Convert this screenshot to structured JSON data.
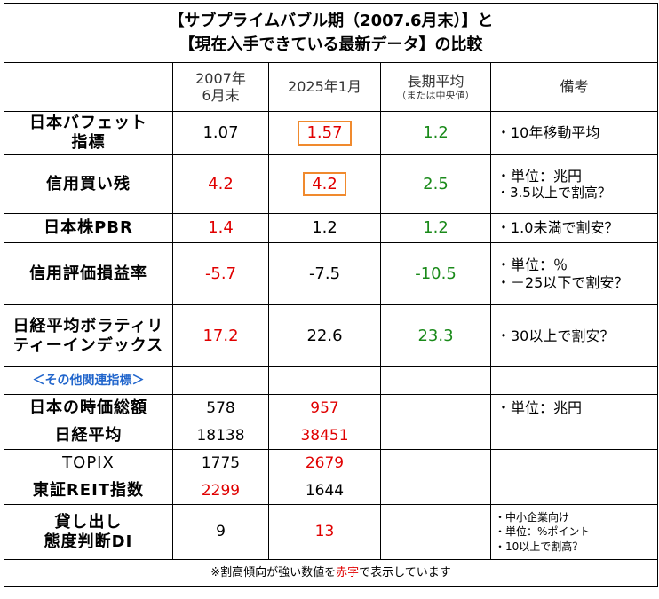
{
  "title": {
    "line1": "【サブプライムバブル期（2007.6月末）】と",
    "line2": "【現在入手できている最新データ】の比較"
  },
  "header": {
    "col_2007_line1": "2007年",
    "col_2007_line2": "6月末",
    "col_2025": "2025年1月",
    "col_longterm": "長期平均",
    "col_longterm_sub": "（または中央値）",
    "col_notes": "備考"
  },
  "rows": [
    {
      "label_line1": "日本バフェット",
      "label_line2": "指標",
      "v2007": "1.07",
      "v2025": "1.57",
      "avg": "1.2",
      "note_line1": "・10年移動平均",
      "note_line2": ""
    },
    {
      "label_line1": "信用買い残",
      "label_line2": "",
      "v2007": "4.2",
      "v2025": "4.2",
      "avg": "2.5",
      "note_line1": "・単位：兆円",
      "note_line2": "・3.5以上で割高？"
    },
    {
      "label_line1": "日本株PBR",
      "label_line2": "",
      "v2007": "1.4",
      "v2025": "1.2",
      "avg": "1.2",
      "note_line1": "・1.0未満で割安？",
      "note_line2": ""
    },
    {
      "label_line1": "信用評価損益率",
      "label_line2": "",
      "v2007": "-5.7",
      "v2025": "-7.5",
      "avg": "-10.5",
      "note_line1": "・単位：％",
      "note_line2": "・－25以下で割安？"
    },
    {
      "label_line1": "日経平均ボラティリ",
      "label_line2": "ティーインデックス",
      "v2007": "17.2",
      "v2025": "22.6",
      "avg": "23.3",
      "note_line1": "・30以上で割安？",
      "note_line2": ""
    }
  ],
  "section_label": "＜その他関連指標＞",
  "other_rows": [
    {
      "label_line1": "日本の時価総額",
      "label_line2": "",
      "v2007": "578",
      "v2025": "957",
      "note": "・単位：兆円"
    },
    {
      "label_line1": "日経平均",
      "label_line2": "",
      "v2007": "18138",
      "v2025": "38451",
      "note": ""
    },
    {
      "label_line1": "TOPIX",
      "label_line2": "",
      "v2007": "1775",
      "v2025": "2679",
      "note": ""
    },
    {
      "label_line1": "東証REIT指数",
      "label_line2": "",
      "v2007": "2299",
      "v2025": "1644",
      "note": ""
    }
  ],
  "di_row": {
    "label_line1": "貸し出し",
    "label_line2": "態度判断DI",
    "v2007": "9",
    "v2025": "13",
    "note_line1": "・中小企業向け",
    "note_line2": "・単位：%ポイント",
    "note_line3": "・10以上で割高？"
  },
  "footer": {
    "prefix": "※割高傾向が強い数値を",
    "highlight": "赤字",
    "suffix": "で表示しています"
  },
  "colors": {
    "highlight_red": "#e00000",
    "longterm_green": "#1a8a1a",
    "box_orange": "#f08a2e",
    "section_blue": "#2266cc"
  }
}
